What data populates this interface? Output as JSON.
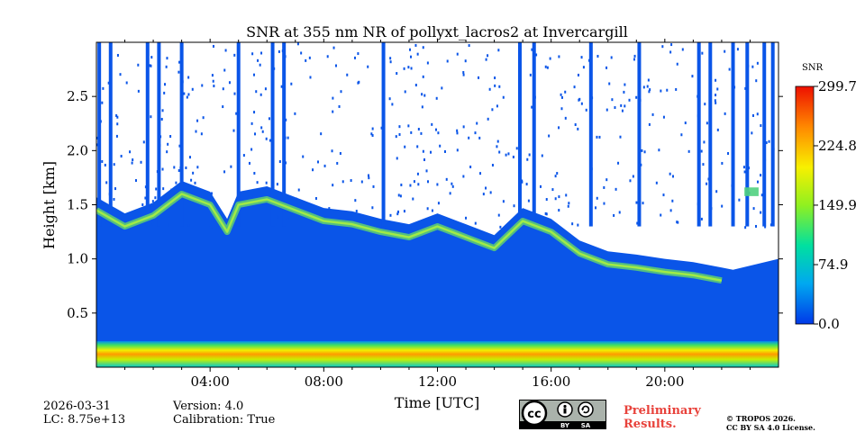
{
  "chart_data": {
    "type": "heatmap",
    "title": "SNR at 355 nm NR of pollyxt_lacros2 at Invercargill",
    "xlabel": "Time [UTC]",
    "ylabel": "Height [km]",
    "xlim_hours": [
      0,
      24
    ],
    "ylim_km": [
      0,
      3.0
    ],
    "x_ticks": [
      {
        "hour": 4,
        "label": "04:00"
      },
      {
        "hour": 8,
        "label": "08:00"
      },
      {
        "hour": 12,
        "label": "12:00"
      },
      {
        "hour": 16,
        "label": "16:00"
      },
      {
        "hour": 20,
        "label": "20:00"
      }
    ],
    "y_ticks": [
      {
        "value": 0.5,
        "label": "0.5"
      },
      {
        "value": 1.0,
        "label": "1.0"
      },
      {
        "value": 1.5,
        "label": "1.5"
      },
      {
        "value": 2.0,
        "label": "2.0"
      },
      {
        "value": 2.5,
        "label": "2.5"
      }
    ],
    "colorbar": {
      "label": "SNR",
      "range": [
        0.0,
        299.7
      ],
      "ticks": [
        {
          "value": 0.0,
          "label": "0.0"
        },
        {
          "value": 74.9,
          "label": "74.9"
        },
        {
          "value": 149.9,
          "label": "149.9"
        },
        {
          "value": 224.8,
          "label": "224.8"
        },
        {
          "value": 299.7,
          "label": "299.7"
        }
      ],
      "colors": [
        "#0038e8",
        "#00a8f0",
        "#00e0a0",
        "#90f020",
        "#f8f000",
        "#ff8800",
        "#ee1000"
      ]
    },
    "features": {
      "boundary_layer_top_km": [
        [
          0.0,
          1.45
        ],
        [
          1.0,
          1.3
        ],
        [
          2.0,
          1.4
        ],
        [
          3.0,
          1.6
        ],
        [
          4.0,
          1.5
        ],
        [
          4.6,
          1.25
        ],
        [
          5.0,
          1.5
        ],
        [
          6.0,
          1.55
        ],
        [
          7.0,
          1.45
        ],
        [
          8.0,
          1.35
        ],
        [
          9.0,
          1.32
        ],
        [
          10.0,
          1.25
        ],
        [
          11.0,
          1.2
        ],
        [
          12.0,
          1.3
        ],
        [
          13.0,
          1.2
        ],
        [
          14.0,
          1.1
        ],
        [
          15.0,
          1.35
        ],
        [
          16.0,
          1.25
        ],
        [
          17.0,
          1.05
        ],
        [
          18.0,
          0.95
        ],
        [
          19.0,
          0.92
        ],
        [
          20.0,
          0.88
        ],
        [
          21.0,
          0.85
        ],
        [
          22.0,
          0.8
        ]
      ],
      "surface_peak_km": 0.1,
      "cloud_layer": {
        "start_hour": 22.8,
        "end_hour": 23.3,
        "height_km": 1.62
      }
    }
  },
  "footer": {
    "date": "2026-03-31",
    "lc": "LC: 8.75e+13",
    "version": "Version: 4.0",
    "calibration": "Calibration: True",
    "preliminary_line1": "Preliminary",
    "preliminary_line2": "Results.",
    "copyright_line1": "© TROPOS 2026.",
    "copyright_line2": "CC BY SA 4.0 License.",
    "license_badge": {
      "main": "cc",
      "by": "BY",
      "sa": "SA"
    }
  }
}
